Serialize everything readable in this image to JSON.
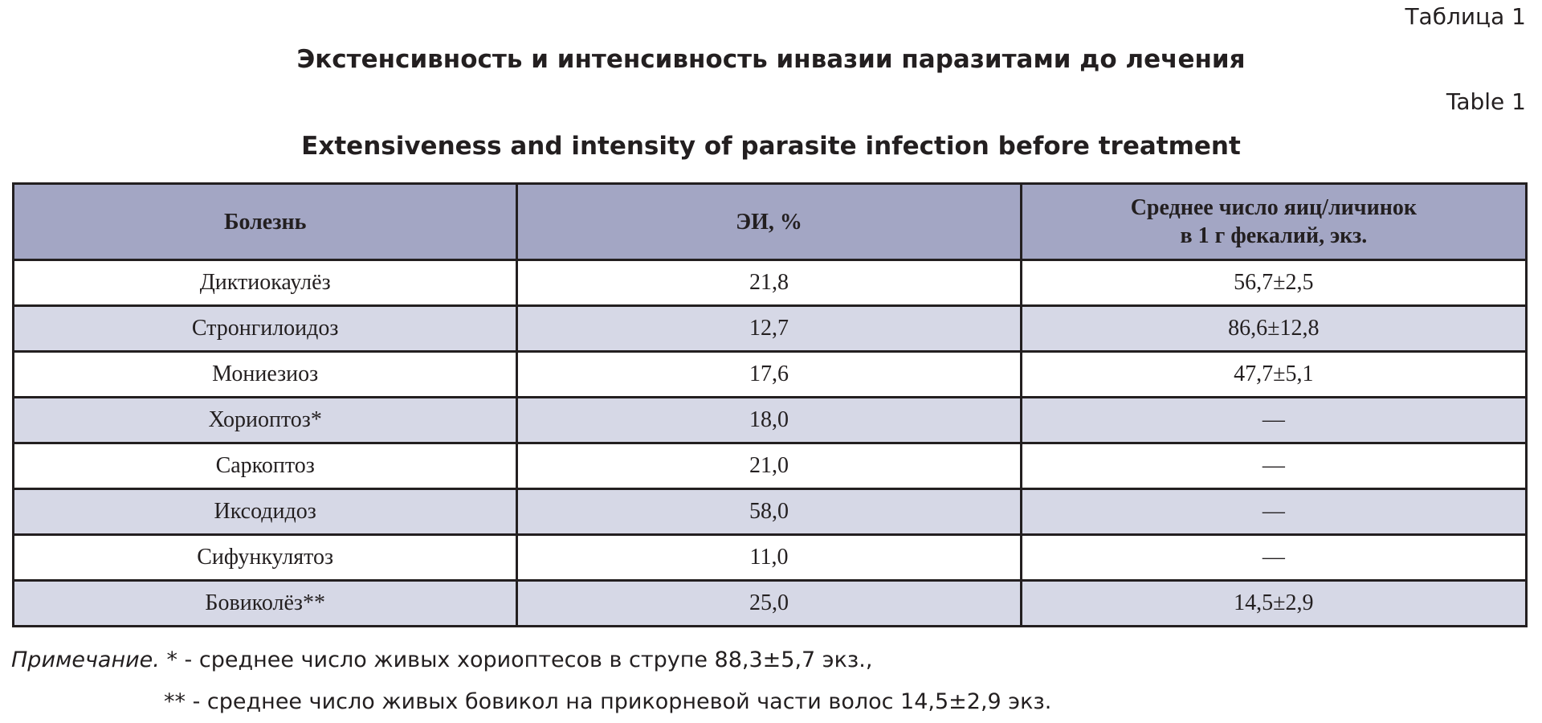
{
  "header": {
    "table_ru": "Таблица 1",
    "title_ru": "Экстенсивность и интенсивность инвазии паразитами до лечения",
    "table_en": "Table 1",
    "title_en": "Extensiveness and intensity of parasite infection before treatment"
  },
  "table": {
    "columns": [
      "Болезнь",
      "ЭИ, %",
      "Среднее число яиц/личинок\nв 1 г фекалий, экз."
    ],
    "rows": [
      [
        "Диктиокаулёз",
        "21,8",
        "56,7±2,5"
      ],
      [
        "Стронгилоидоз",
        "12,7",
        "86,6±12,8"
      ],
      [
        "Мониезиоз",
        "17,6",
        "47,7±5,1"
      ],
      [
        "Хориоптоз*",
        "18,0",
        "—"
      ],
      [
        "Саркоптоз",
        "21,0",
        "—"
      ],
      [
        "Иксодидоз",
        "58,0",
        "—"
      ],
      [
        "Сифункулятоз",
        "11,0",
        "—"
      ],
      [
        "Бовиколёз**",
        "25,0",
        "14,5±2,9"
      ]
    ]
  },
  "note": {
    "label": "Примечание.",
    "line1": "* - среднее число живых хориоптесов в струпе 88,3±5,7 экз.,",
    "line2": "** - среднее число живых бовикол на прикорневой части волос 14,5±2,9 экз."
  }
}
